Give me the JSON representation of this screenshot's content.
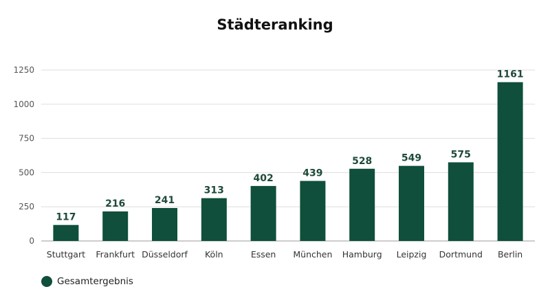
{
  "chart_data": {
    "type": "bar",
    "title": "Städteranking",
    "categories": [
      "Stuttgart",
      "Frankfurt",
      "Düsseldorf",
      "Köln",
      "Essen",
      "München",
      "Hamburg",
      "Leipzig",
      "Dortmund",
      "Berlin"
    ],
    "series": [
      {
        "name": "Gesamtergebnis",
        "values": [
          117,
          216,
          241,
          313,
          402,
          439,
          528,
          549,
          575,
          1161
        ]
      }
    ],
    "data_labels": [
      "117",
      "216",
      "241",
      "313",
      "402",
      "439",
      "528",
      "549",
      "575",
      "1161"
    ],
    "yticks": [
      0,
      250,
      500,
      750,
      1000,
      1250
    ],
    "ylim": [
      0,
      1300
    ],
    "grid": true,
    "legend_position": "bottom-left",
    "colors": {
      "bar": "#0f4f3b",
      "grid": "#dddddd",
      "axis": "#999999"
    }
  }
}
